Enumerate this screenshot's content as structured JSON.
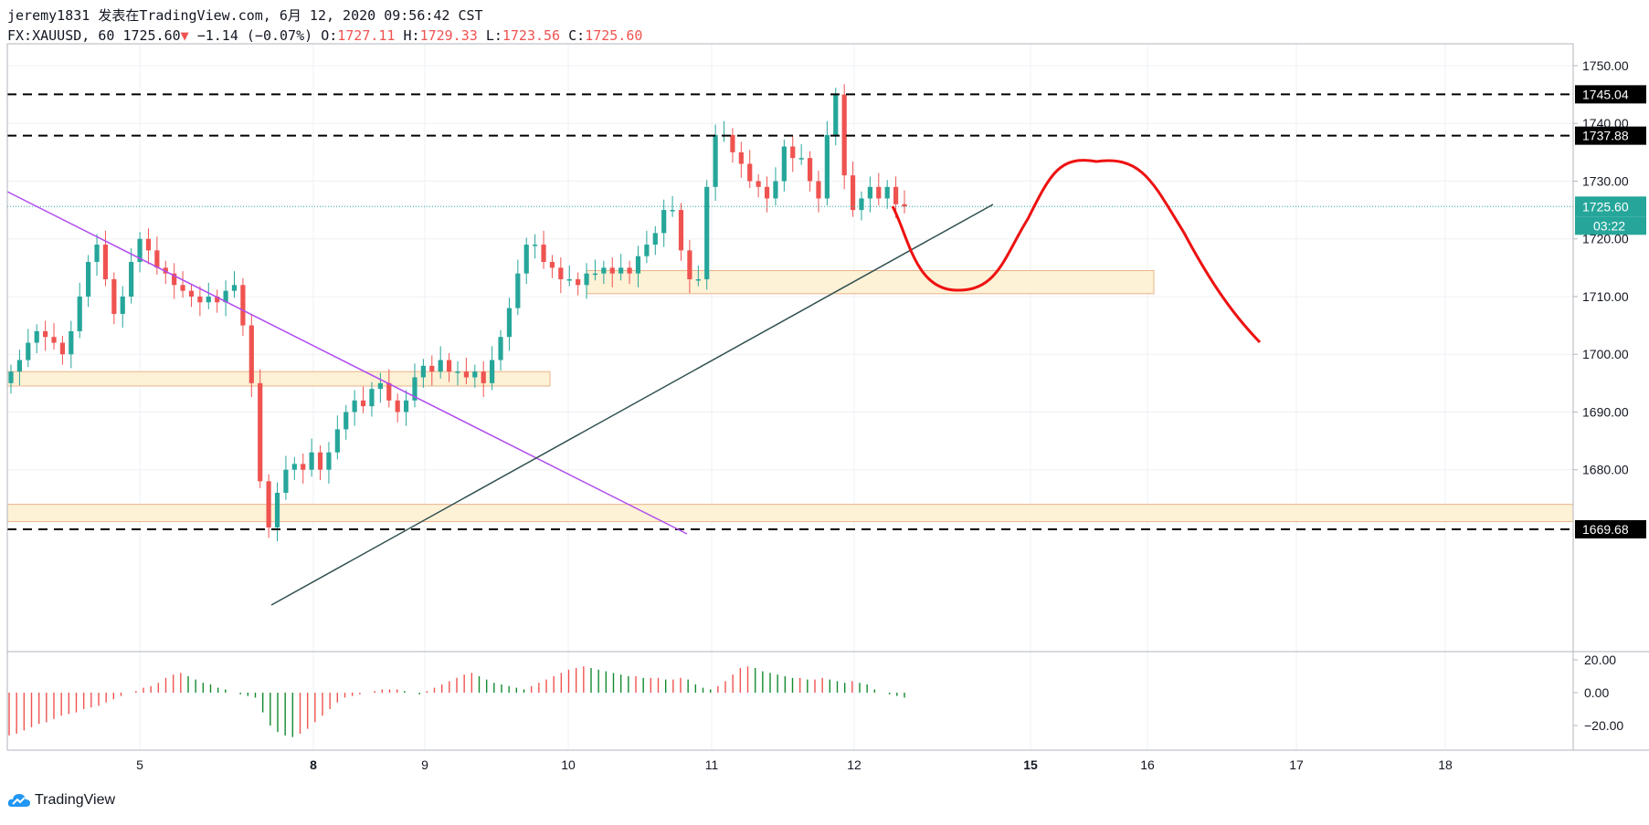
{
  "header": {
    "line1": "jeremy1831 发表在TradingView.com, 6月 12, 2020 09:56:42 CST",
    "symbol": "FX:XAUUSD, 60",
    "last": "1725.60",
    "arrow": "▼",
    "change": "−1.14 (−0.07%)",
    "o_label": "O:",
    "o_value": "1727.11",
    "h_label": "H:",
    "h_value": "1729.33",
    "l_label": "L:",
    "l_value": "1723.56",
    "c_label": "C:",
    "c_value": "1725.60"
  },
  "footer": {
    "brand": "TradingView",
    "brand_icon": "tradingview-cloud-icon"
  },
  "colors": {
    "up": "#26a69a",
    "down": "#ef5350",
    "purple": "#b04cf0",
    "trend": "#2f4f4f",
    "zone": "#fdf1d6",
    "zone_border": "#e9b48a",
    "drawing": "#ee1111"
  },
  "chart_data": {
    "type": "candlestick",
    "symbol": "FX:XAUUSD",
    "interval": "60",
    "ylim": [
      1663,
      1756
    ],
    "y_ticks": [
      "1750.00",
      "1740.00",
      "1730.00",
      "1720.00",
      "1710.00",
      "1700.00",
      "1690.00",
      "1680.00"
    ],
    "x_ticks": [
      {
        "label": "5",
        "bold": false
      },
      {
        "label": "8",
        "bold": true
      },
      {
        "label": "9",
        "bold": false
      },
      {
        "label": "10",
        "bold": false
      },
      {
        "label": "11",
        "bold": false
      },
      {
        "label": "12",
        "bold": false
      },
      {
        "label": "15",
        "bold": true
      },
      {
        "label": "16",
        "bold": false
      },
      {
        "label": "17",
        "bold": false
      },
      {
        "label": "18",
        "bold": false
      }
    ],
    "last_price": "1725.60",
    "countdown": "03:22",
    "horizontal_levels": [
      "1745.04",
      "1737.88",
      "1669.68"
    ],
    "closes": [
      1697,
      1699,
      1702,
      1704,
      1703,
      1702,
      1700,
      1704,
      1710,
      1716,
      1719,
      1713,
      1707,
      1710,
      1716,
      1720,
      1718,
      1715,
      1714,
      1712,
      1711,
      1710,
      1709,
      1710,
      1709,
      1711,
      1712,
      1705,
      1695,
      1678,
      1670,
      1676,
      1680,
      1681,
      1680,
      1683,
      1680,
      1683,
      1687,
      1690,
      1692,
      1691,
      1694,
      1695,
      1692,
      1690,
      1692,
      1696,
      1698,
      1697,
      1699,
      1697,
      1697,
      1696,
      1697,
      1695,
      1699,
      1703,
      1708,
      1714,
      1719,
      1719,
      1716,
      1715,
      1713,
      1713,
      1712,
      1714,
      1714,
      1715,
      1714,
      1715,
      1714,
      1717,
      1719,
      1721,
      1725,
      1725,
      1718,
      1713,
      1713,
      1729,
      1738,
      1738,
      1735,
      1733,
      1730,
      1729,
      1727,
      1730,
      1736,
      1734,
      1734,
      1730,
      1727,
      1738,
      1745,
      1731,
      1725,
      1727,
      1729,
      1727,
      1729,
      1726,
      1725.6
    ],
    "oscillator": {
      "ylim": [
        -30,
        26
      ],
      "ticks": [
        "20.00",
        "0.00",
        "−20.00"
      ],
      "values": [
        -26,
        -25,
        -23,
        -21,
        -19,
        -18,
        -16,
        -14,
        -13,
        -12,
        -10,
        -9,
        -8,
        -6,
        -4,
        -2,
        0,
        1,
        3,
        4,
        6,
        9,
        11,
        12,
        10,
        8,
        6,
        5,
        3,
        2,
        0,
        -1,
        -2,
        -3,
        -12,
        -20,
        -24,
        -26,
        -27,
        -25,
        -22,
        -18,
        -14,
        -10,
        -6,
        -3,
        -2,
        -1,
        0,
        1,
        2,
        2,
        2,
        1,
        0,
        -1,
        1,
        3,
        5,
        7,
        9,
        11,
        12,
        10,
        8,
        6,
        5,
        4,
        3,
        2,
        4,
        6,
        8,
        10,
        12,
        14,
        15,
        16,
        15,
        14,
        13,
        12,
        11,
        10,
        10,
        9,
        9,
        9,
        8,
        8,
        9,
        8,
        5,
        3,
        2,
        4,
        7,
        11,
        15,
        16,
        15,
        13,
        12,
        11,
        10,
        9,
        9,
        8,
        8,
        9,
        8,
        7,
        6,
        7,
        6,
        5,
        2,
        0,
        -1,
        -2,
        -3
      ]
    }
  }
}
